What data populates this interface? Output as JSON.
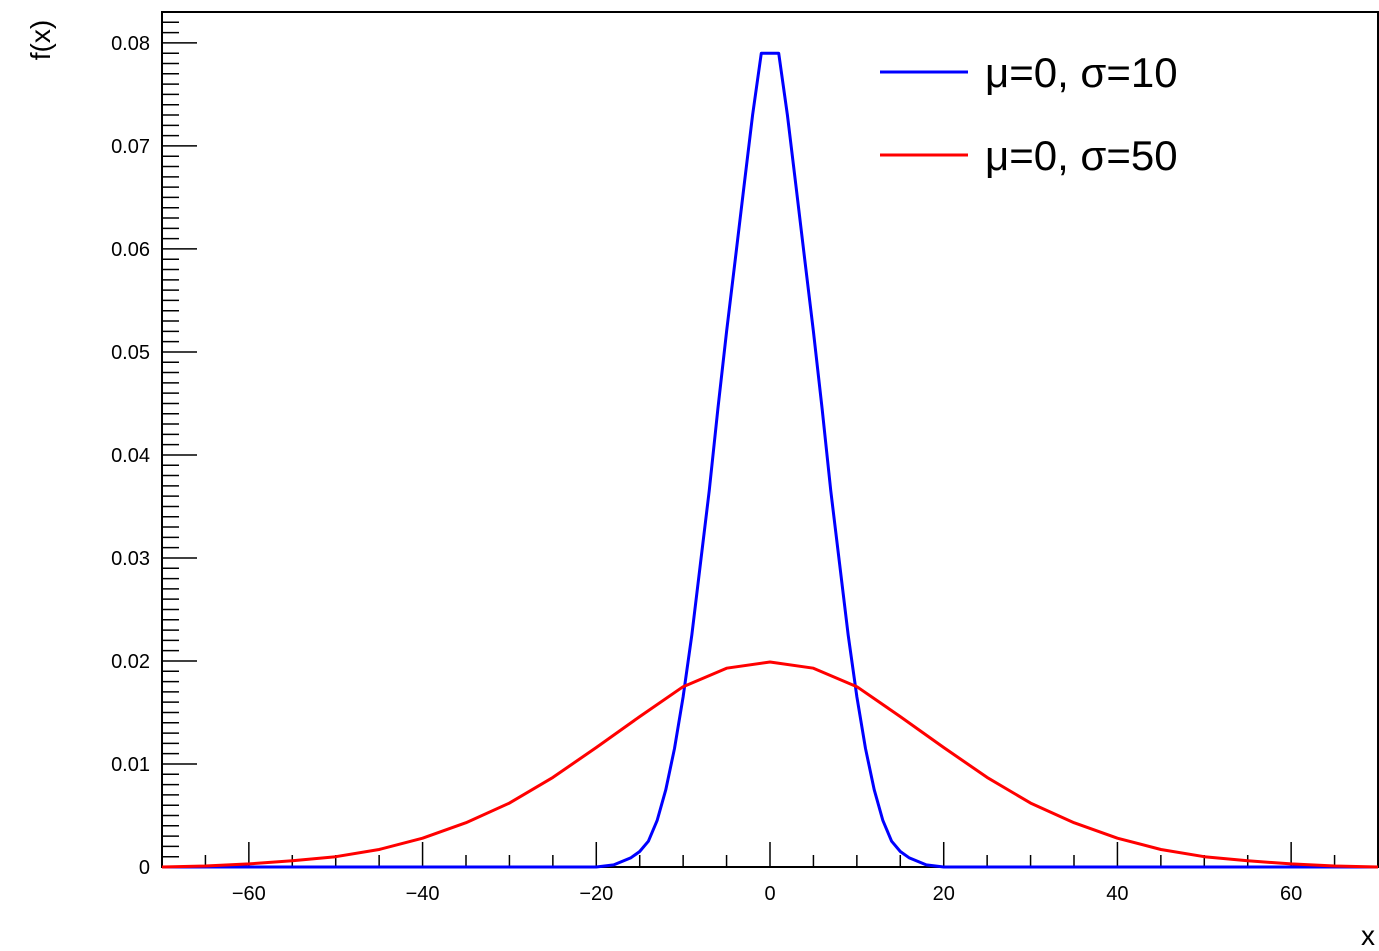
{
  "chart_data": {
    "type": "line",
    "title": "",
    "xlabel": "x",
    "ylabel": "f(x)",
    "xlim": [
      -70,
      70
    ],
    "ylim": [
      0,
      0.083
    ],
    "x_ticks": [
      -60,
      -40,
      -20,
      0,
      20,
      40,
      60
    ],
    "x_tick_labels": [
      "−60",
      "−40",
      "−20",
      "0",
      "20",
      "40",
      "60"
    ],
    "y_ticks": [
      0,
      0.01,
      0.02,
      0.03,
      0.04,
      0.05,
      0.06,
      0.07,
      0.08
    ],
    "y_tick_labels": [
      "0",
      "0.01",
      "0.02",
      "0.03",
      "0.04",
      "0.05",
      "0.06",
      "0.07",
      "0.08"
    ],
    "grid": false,
    "legend_position": "top-right",
    "series": [
      {
        "name": "μ=0, σ=10",
        "color": "#0000ff",
        "x": [
          -70,
          -20,
          -18,
          -16,
          -15,
          -14,
          -13,
          -12,
          -11,
          -10,
          -9,
          -8,
          -7,
          -6,
          -5,
          -4,
          -3,
          -2,
          -1,
          0,
          1,
          2,
          3,
          4,
          5,
          6,
          7,
          8,
          9,
          10,
          11,
          12,
          13,
          14,
          15,
          16,
          18,
          20,
          70
        ],
        "y": [
          0,
          0,
          0.0002,
          0.0009,
          0.0015,
          0.0025,
          0.0045,
          0.0075,
          0.0115,
          0.0165,
          0.0225,
          0.0295,
          0.0365,
          0.0445,
          0.052,
          0.059,
          0.066,
          0.073,
          0.079,
          0.079,
          0.079,
          0.073,
          0.066,
          0.059,
          0.052,
          0.0445,
          0.0365,
          0.0295,
          0.0225,
          0.0165,
          0.0115,
          0.0075,
          0.0045,
          0.0025,
          0.0015,
          0.0009,
          0.0002,
          0,
          0
        ]
      },
      {
        "name": "μ=0, σ=50",
        "color": "#ff0000",
        "x": [
          -70,
          -65,
          -60,
          -55,
          -50,
          -45,
          -40,
          -35,
          -30,
          -25,
          -20,
          -15,
          -10,
          -5,
          0,
          5,
          10,
          15,
          20,
          25,
          30,
          35,
          40,
          45,
          50,
          55,
          60,
          65,
          70
        ],
        "y": [
          0,
          0.0001,
          0.0003,
          0.0006,
          0.001,
          0.0017,
          0.0028,
          0.0043,
          0.0062,
          0.0087,
          0.0116,
          0.0146,
          0.0175,
          0.0193,
          0.0199,
          0.0193,
          0.0175,
          0.0146,
          0.0116,
          0.0087,
          0.0062,
          0.0043,
          0.0028,
          0.0017,
          0.001,
          0.0006,
          0.0003,
          0.0001,
          0
        ]
      }
    ]
  }
}
